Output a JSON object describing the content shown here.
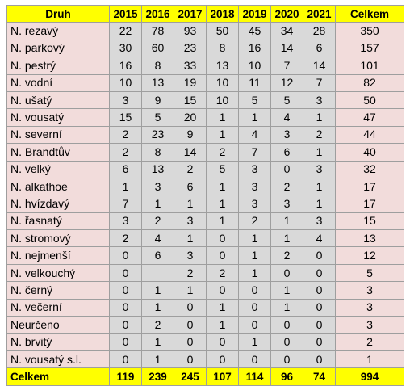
{
  "table": {
    "headers": [
      "Druh",
      "2015",
      "2016",
      "2017",
      "2018",
      "2019",
      "2020",
      "2021",
      "Celkem"
    ],
    "rows": [
      {
        "name": "N. rezavý",
        "values": [
          "22",
          "78",
          "93",
          "50",
          "45",
          "34",
          "28"
        ],
        "total": "350"
      },
      {
        "name": "N. parkový",
        "values": [
          "30",
          "60",
          "23",
          "8",
          "16",
          "14",
          "6"
        ],
        "total": "157"
      },
      {
        "name": "N. pestrý",
        "values": [
          "16",
          "8",
          "33",
          "13",
          "10",
          "7",
          "14"
        ],
        "total": "101"
      },
      {
        "name": "N. vodní",
        "values": [
          "10",
          "13",
          "19",
          "10",
          "11",
          "12",
          "7"
        ],
        "total": "82"
      },
      {
        "name": "N. ušatý",
        "values": [
          "3",
          "9",
          "15",
          "10",
          "5",
          "5",
          "3"
        ],
        "total": "50"
      },
      {
        "name": "N. vousatý",
        "values": [
          "15",
          "5",
          "20",
          "1",
          "1",
          "4",
          "1"
        ],
        "total": "47"
      },
      {
        "name": "N. severní",
        "values": [
          "2",
          "23",
          "9",
          "1",
          "4",
          "3",
          "2"
        ],
        "total": "44"
      },
      {
        "name": "N. Brandtův",
        "values": [
          "2",
          "8",
          "14",
          "2",
          "7",
          "6",
          "1"
        ],
        "total": "40"
      },
      {
        "name": "N. velký",
        "values": [
          "6",
          "13",
          "2",
          "5",
          "3",
          "0",
          "3"
        ],
        "total": "32"
      },
      {
        "name": "N. alkathoe",
        "values": [
          "1",
          "3",
          "6",
          "1",
          "3",
          "2",
          "1"
        ],
        "total": "17"
      },
      {
        "name": "N. hvízdavý",
        "values": [
          "7",
          "1",
          "1",
          "1",
          "3",
          "3",
          "1"
        ],
        "total": "17"
      },
      {
        "name": "N. řasnatý",
        "values": [
          "3",
          "2",
          "3",
          "1",
          "2",
          "1",
          "3"
        ],
        "total": "15"
      },
      {
        "name": "N. stromový",
        "values": [
          "2",
          "4",
          "1",
          "0",
          "1",
          "1",
          "4"
        ],
        "total": "13"
      },
      {
        "name": "N. nejmenší",
        "values": [
          "0",
          "6",
          "3",
          "0",
          "1",
          "2",
          "0"
        ],
        "total": "12"
      },
      {
        "name": "N. velkouchý",
        "values": [
          "0",
          "",
          "2",
          "2",
          "1",
          "0",
          "0"
        ],
        "total": "5"
      },
      {
        "name": "N. černý",
        "values": [
          "0",
          "1",
          "1",
          "0",
          "0",
          "1",
          "0"
        ],
        "total": "3"
      },
      {
        "name": "N. večerní",
        "values": [
          "0",
          "1",
          "0",
          "1",
          "0",
          "1",
          "0"
        ],
        "total": "3"
      },
      {
        "name": "Neurčeno",
        "values": [
          "0",
          "2",
          "0",
          "1",
          "0",
          "0",
          "0"
        ],
        "total": "3"
      },
      {
        "name": "N. brvitý",
        "values": [
          "0",
          "1",
          "0",
          "0",
          "1",
          "0",
          "0"
        ],
        "total": "2"
      },
      {
        "name": "N. vousatý s.l.",
        "values": [
          "0",
          "1",
          "0",
          "0",
          "0",
          "0",
          "0"
        ],
        "total": "1"
      }
    ],
    "footer": {
      "label": "Celkem",
      "values": [
        "119",
        "239",
        "245",
        "107",
        "114",
        "96",
        "74"
      ],
      "total": "994"
    }
  },
  "colors": {
    "header_bg": "#ffff00",
    "name_bg": "#f2dcdb",
    "year_bg": "#d9d9d9",
    "total_bg": "#f2dcdb",
    "border": "#9e9e9e"
  }
}
